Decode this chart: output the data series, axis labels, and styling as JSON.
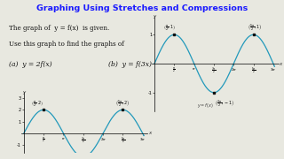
{
  "title": "Graphing Using Stretches and Compressions",
  "title_color": "#1a1aff",
  "bg_color": "#e8e8e0",
  "text1": "The graph of  y = f(x)  is given.",
  "text2": "Use this graph to find the graphs of",
  "text3a": "(a)  y = 2f(x)",
  "text3b": "(b)  y = f(3x)",
  "curve_color": "#2299bb",
  "dot_color": "#111111",
  "pi": 3.14159265358979
}
